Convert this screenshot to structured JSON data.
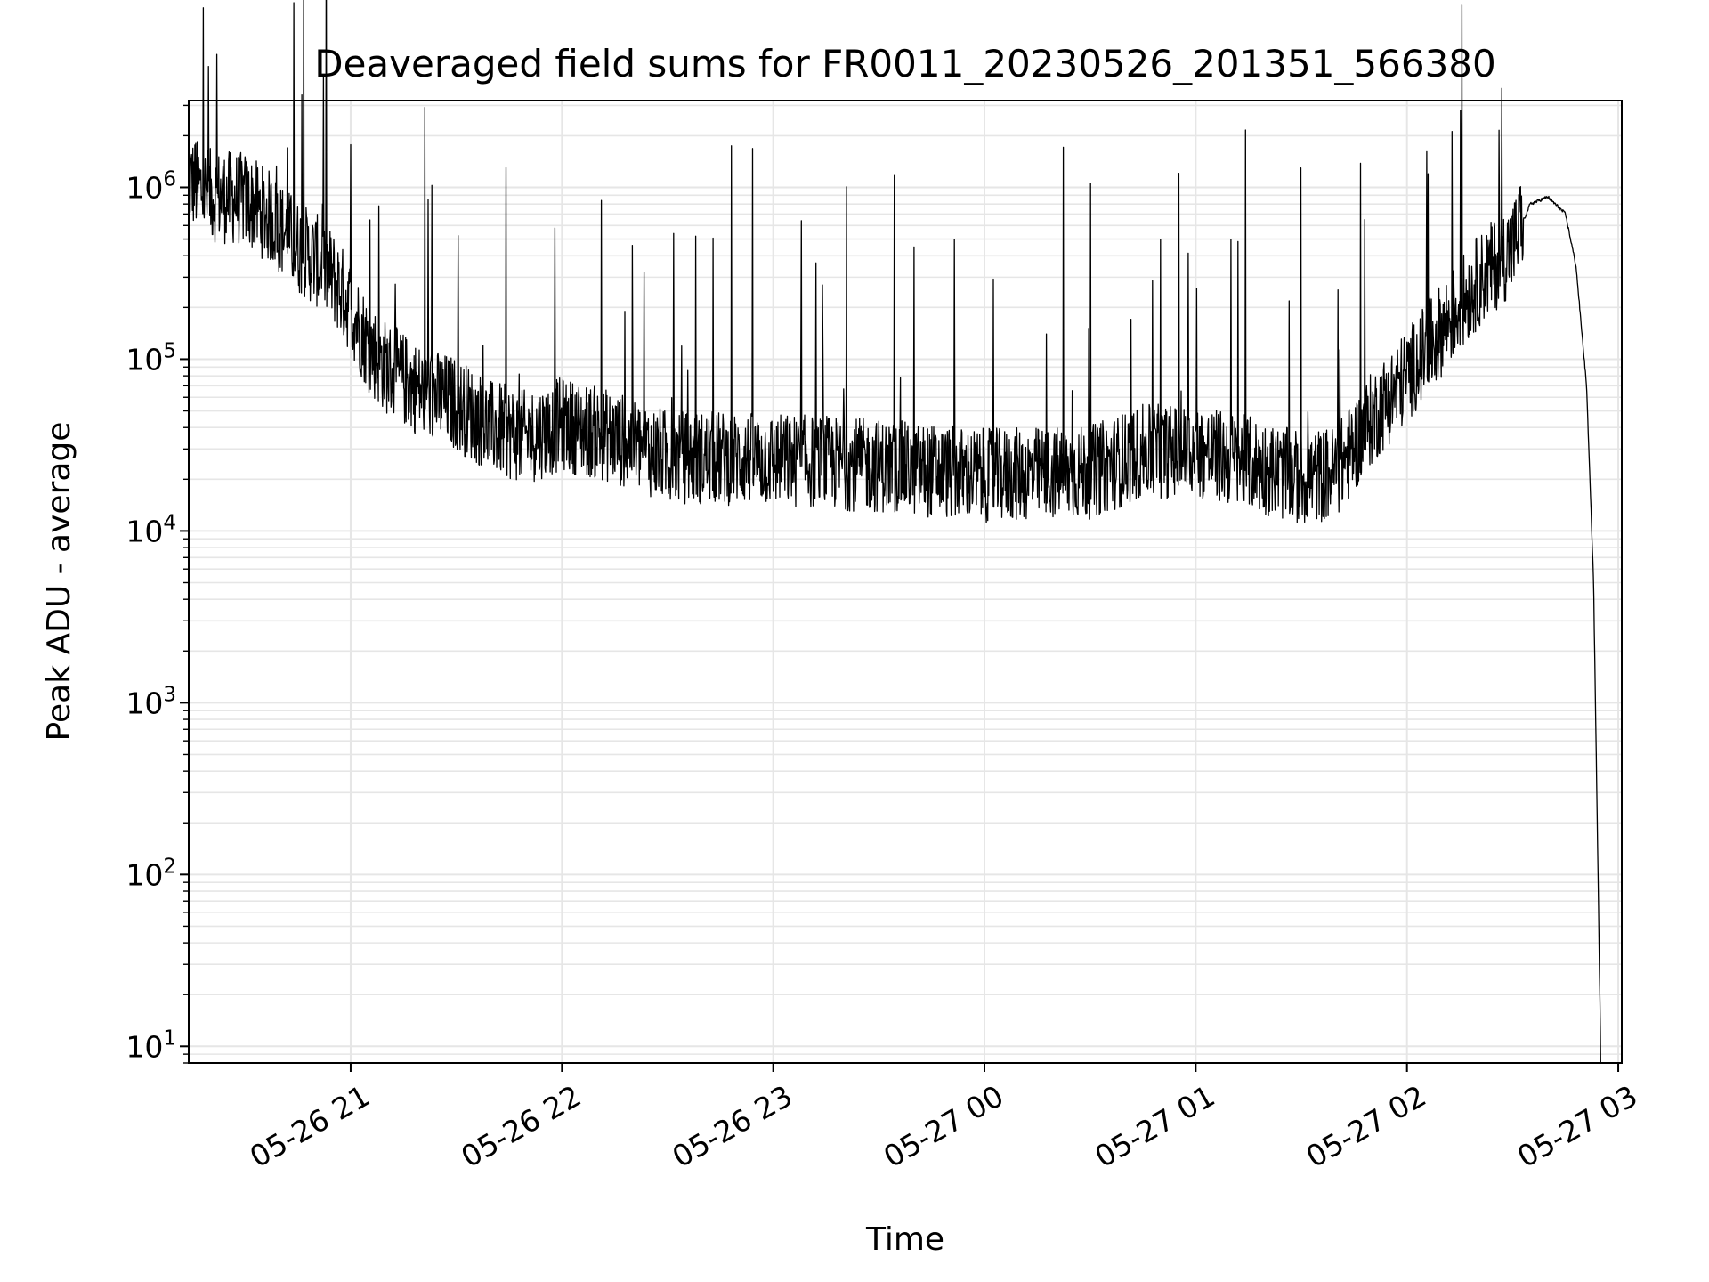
{
  "chart_data": {
    "type": "line",
    "title": "Deaveraged field sums for FR0011_20230526_201351_566380",
    "xlabel": "Time",
    "ylabel": "Peak ADU - average",
    "yscale": "log",
    "grid": true,
    "line_color": "#000000",
    "grid_color": "#e6e6e6",
    "xlim": [
      "2023-05-26 20:14",
      "2023-05-27 03:01"
    ],
    "ylim": [
      8,
      3200000
    ],
    "x_ticks": [
      {
        "label": "05-26 21",
        "time": "2023-05-26 21:00"
      },
      {
        "label": "05-26 22",
        "time": "2023-05-26 22:00"
      },
      {
        "label": "05-26 23",
        "time": "2023-05-26 23:00"
      },
      {
        "label": "05-27 00",
        "time": "2023-05-27 00:00"
      },
      {
        "label": "05-27 01",
        "time": "2023-05-27 01:00"
      },
      {
        "label": "05-27 02",
        "time": "2023-05-27 02:00"
      },
      {
        "label": "05-27 03",
        "time": "2023-05-27 03:00"
      }
    ],
    "y_ticks": [
      {
        "mantissa": "10",
        "exponent": "1",
        "value": 10
      },
      {
        "mantissa": "10",
        "exponent": "2",
        "value": 100
      },
      {
        "mantissa": "10",
        "exponent": "3",
        "value": 1000
      },
      {
        "mantissa": "10",
        "exponent": "4",
        "value": 10000
      },
      {
        "mantissa": "10",
        "exponent": "5",
        "value": 100000
      },
      {
        "mantissa": "10",
        "exponent": "6",
        "value": 1000000
      }
    ],
    "series": [
      {
        "baseline": [
          [
            "2023-05-26 20:14",
            1100000
          ],
          [
            "2023-05-26 20:20",
            900000
          ],
          [
            "2023-05-26 20:30",
            850000
          ],
          [
            "2023-05-26 20:38",
            650000
          ],
          [
            "2023-05-26 20:45",
            450000
          ],
          [
            "2023-05-26 20:50",
            380000
          ],
          [
            "2023-05-26 20:55",
            300000
          ],
          [
            "2023-05-26 21:00",
            200000
          ],
          [
            "2023-05-26 21:05",
            120000
          ],
          [
            "2023-05-26 21:10",
            90000
          ],
          [
            "2023-05-26 21:20",
            65000
          ],
          [
            "2023-05-26 21:30",
            55000
          ],
          [
            "2023-05-26 21:40",
            40000
          ],
          [
            "2023-05-26 21:50",
            35000
          ],
          [
            "2023-05-26 22:00",
            42000
          ],
          [
            "2023-05-26 22:15",
            35000
          ],
          [
            "2023-05-26 22:30",
            27000
          ],
          [
            "2023-05-26 23:00",
            26000
          ],
          [
            "2023-05-26 23:30",
            24000
          ],
          [
            "2023-05-27 00:00",
            21000
          ],
          [
            "2023-05-27 00:30",
            22000
          ],
          [
            "2023-05-27 00:45",
            29000
          ],
          [
            "2023-05-27 01:00",
            29000
          ],
          [
            "2023-05-27 01:15",
            25000
          ],
          [
            "2023-05-27 01:30",
            20000
          ],
          [
            "2023-05-27 01:40",
            22000
          ],
          [
            "2023-05-27 01:50",
            45000
          ],
          [
            "2023-05-27 02:00",
            80000
          ],
          [
            "2023-05-27 02:10",
            150000
          ],
          [
            "2023-05-27 02:20",
            280000
          ],
          [
            "2023-05-27 02:30",
            450000
          ],
          [
            "2023-05-27 02:35",
            800000
          ],
          [
            "2023-05-27 02:40",
            880000
          ],
          [
            "2023-05-27 02:45",
            700000
          ],
          [
            "2023-05-27 02:48",
            350000
          ],
          [
            "2023-05-27 02:51",
            70000
          ],
          [
            "2023-05-27 02:53",
            5000
          ],
          [
            "2023-05-27 02:55",
            10
          ]
        ],
        "spikes": [
          [
            "2023-05-26 20:16",
            1800000
          ],
          [
            "2023-05-26 20:42",
            1700000
          ],
          [
            "2023-05-26 20:52",
            800000
          ],
          [
            "2023-05-26 21:08",
            780000
          ],
          [
            "2023-05-26 21:22",
            850000
          ],
          [
            "2023-05-26 21:33",
            780000
          ],
          [
            "2023-05-26 21:47",
            600000
          ],
          [
            "2023-05-26 21:58",
            580000
          ],
          [
            "2023-05-26 22:03",
            440000
          ],
          [
            "2023-05-26 22:20",
            460000
          ],
          [
            "2023-05-26 22:38",
            520000
          ],
          [
            "2023-05-26 22:53",
            650000
          ],
          [
            "2023-05-26 23:08",
            640000
          ],
          [
            "2023-05-26 23:23",
            700000
          ],
          [
            "2023-05-26 23:40",
            450000
          ],
          [
            "2023-05-27 00:05",
            500000
          ],
          [
            "2023-05-27 00:25",
            500000
          ],
          [
            "2023-05-27 00:50",
            500000
          ],
          [
            "2023-05-27 01:10",
            500000
          ],
          [
            "2023-05-27 01:48",
            650000
          ],
          [
            "2023-05-27 02:06",
            1200000
          ],
          [
            "2023-05-27 02:13",
            1000000
          ],
          [
            "2023-05-27 02:32",
            1000000
          ]
        ]
      }
    ]
  }
}
